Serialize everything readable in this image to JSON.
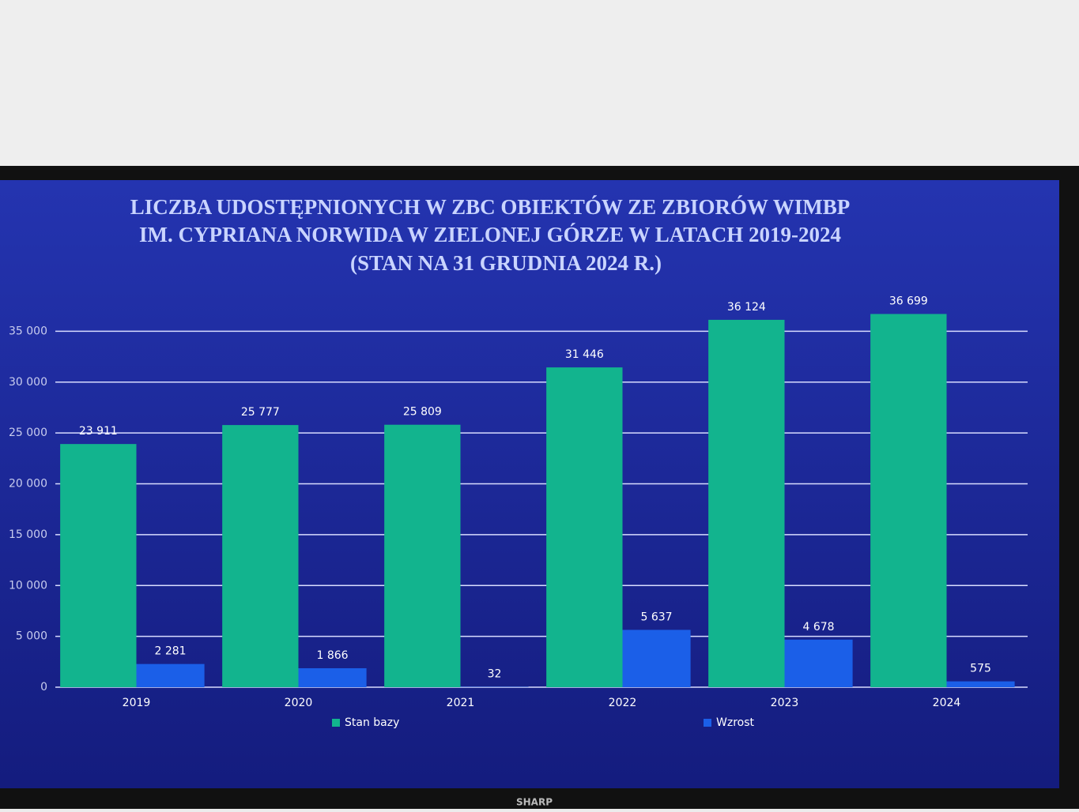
{
  "brand": "SHARP",
  "chart_data": {
    "type": "bar",
    "title": [
      "LICZBA UDOSTĘPNIONYCH W ZBC OBIEKTÓW ZE ZBIORÓW WIMBP",
      "IM. CYPRIANA NORWIDA W ZIELONEJ GÓRZE W LATACH 2019-2024",
      "(STAN NA 31 GRUDNIA 2024 R.)"
    ],
    "categories": [
      "2019",
      "2020",
      "2021",
      "2022",
      "2023",
      "2024"
    ],
    "series": [
      {
        "name": "Stan bazy",
        "color": "#12b48e",
        "values": [
          23911,
          25777,
          25809,
          31446,
          36124,
          36699
        ],
        "value_labels": [
          "23 911",
          "25 777",
          "25 809",
          "31 446",
          "36 124",
          "36 699"
        ]
      },
      {
        "name": "Wzrost",
        "color": "#1b5fe8",
        "values": [
          2281,
          1866,
          32,
          5637,
          4678,
          575
        ],
        "value_labels": [
          "2 281",
          "1 866",
          "32",
          "5 637",
          "4 678",
          "575"
        ]
      }
    ],
    "ylim": [
      0,
      40000
    ],
    "yticks": [
      0,
      {
        "value": 5000,
        "label": "5 000"
      },
      {
        "value": 10000,
        "label": "10 000"
      },
      {
        "value": 15000,
        "label": "15 000"
      },
      {
        "value": 20000,
        "label": "20 000"
      },
      {
        "value": 25000,
        "label": "25 000"
      },
      {
        "value": 30000,
        "label": "30 000"
      },
      {
        "value": 35000,
        "label": "35 000"
      }
    ],
    "grid": true,
    "legend": "bottom"
  }
}
